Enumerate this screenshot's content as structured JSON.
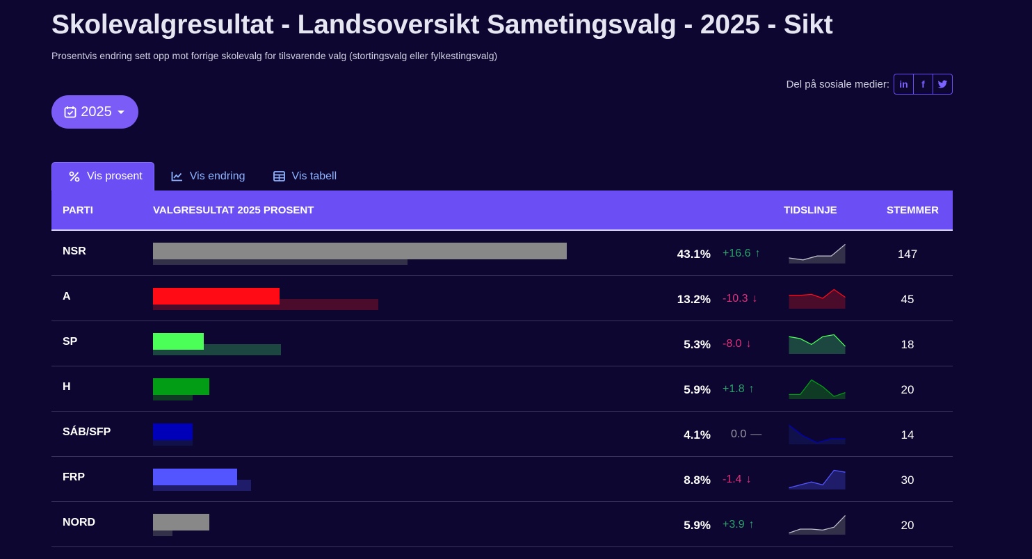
{
  "header": {
    "title": "Skolevalgresultat - Landsoversikt Sametingsvalg - 2025 - Sikt",
    "subtitle": "Prosentvis endring sett opp mot forrige skolevalg for tilsvarende valg (stortingsvalg eller fylkestingsvalg)"
  },
  "share": {
    "label": "Del på sosiale medier:",
    "linkedin": "in",
    "facebook": "f",
    "twitter": "t"
  },
  "year_selector": {
    "value": "2025"
  },
  "tabs": [
    {
      "label": "Vis prosent",
      "icon": "percent-icon",
      "active": true
    },
    {
      "label": "Vis endring",
      "icon": "line-chart-icon",
      "active": false
    },
    {
      "label": "Vis tabell",
      "icon": "table-icon",
      "active": false
    }
  ],
  "table": {
    "headers": {
      "parti": "PARTI",
      "valgresultat": "VALGRESULTAT 2025 PROSENT",
      "tidslinje": "TIDSLINJE",
      "stemmer": "STEMMER"
    },
    "rows": [
      {
        "party": "NSR",
        "pct": "43.1%",
        "change": "+16.6",
        "dir": "up",
        "votes": "147",
        "value": 43.1,
        "prev": 26.5,
        "color": "#888888",
        "prev_color": "#33304a",
        "timeline": [
          0.25,
          0.15,
          0.35,
          0.35,
          0.95
        ]
      },
      {
        "party": "A",
        "pct": "13.2%",
        "change": "-10.3",
        "dir": "down",
        "votes": "45",
        "value": 13.2,
        "prev": 23.5,
        "color": "#ff0b16",
        "prev_color": "#4a0c2a",
        "timeline": [
          0.65,
          0.65,
          0.7,
          0.5,
          0.95,
          0.55
        ]
      },
      {
        "party": "SP",
        "pct": "5.3%",
        "change": "-8.0",
        "dir": "down",
        "votes": "18",
        "value": 5.3,
        "prev": 13.3,
        "color": "#4cff58",
        "prev_color": "#1c4640",
        "timeline": [
          0.85,
          0.75,
          0.45,
          0.85,
          0.95,
          0.35
        ]
      },
      {
        "party": "H",
        "pct": "5.9%",
        "change": "+1.8",
        "dir": "up",
        "votes": "20",
        "value": 5.9,
        "prev": 4.1,
        "color": "#039c15",
        "prev_color": "#0f3a24",
        "timeline": [
          0.2,
          0.2,
          0.95,
          0.6,
          0.1,
          0.3
        ]
      },
      {
        "party": "SÁB/SFP",
        "pct": "4.1%",
        "change": "0.0",
        "dir": "flat",
        "votes": "14",
        "value": 4.1,
        "prev": 4.1,
        "color": "#0000b8",
        "prev_color": "#10104a",
        "timeline": [
          0.95,
          0.4,
          0.05,
          0.25,
          0.25
        ]
      },
      {
        "party": "FRP",
        "pct": "8.8%",
        "change": "-1.4",
        "dir": "down",
        "votes": "30",
        "value": 8.8,
        "prev": 10.2,
        "color": "#5356ff",
        "prev_color": "#1f1d6a",
        "timeline": [
          0.05,
          0.2,
          0.35,
          0.2,
          0.95,
          0.85
        ]
      },
      {
        "party": "NORD",
        "pct": "5.9%",
        "change": "+3.9",
        "dir": "up",
        "votes": "20",
        "value": 5.9,
        "prev": 2.0,
        "color": "#888888",
        "prev_color": "#33304a",
        "timeline": [
          0.05,
          0.25,
          0.25,
          0.2,
          0.35,
          0.95
        ]
      }
    ]
  }
}
